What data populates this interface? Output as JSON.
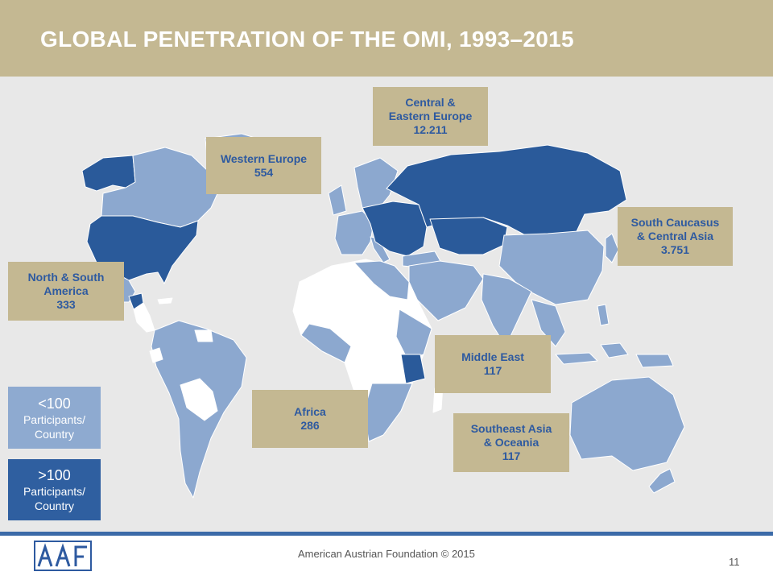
{
  "title": "GLOBAL PENETRATION OF THE OMI, 1993–2015",
  "regions": {
    "central_eastern_europe": {
      "name_line1": "Central &",
      "name_line2": "Eastern Europe",
      "value": "12.211"
    },
    "western_europe": {
      "name": "Western Europe",
      "value": "554"
    },
    "south_caucasus": {
      "name_line1": "South Caucasus",
      "name_line2": "& Central Asia",
      "value": "3.751"
    },
    "americas": {
      "name_line1": "North & South",
      "name_line2": "America",
      "value": "333"
    },
    "middle_east": {
      "name": "Middle East",
      "value": "117"
    },
    "africa": {
      "name": "Africa",
      "value": "286"
    },
    "southeast_asia": {
      "name_line1": "Southeast Asia",
      "name_line2": "& Oceania",
      "value": "117"
    }
  },
  "legend": {
    "low": {
      "threshold": "<100",
      "line1": "Participants/",
      "line2": "Country",
      "color": "#8eaad0"
    },
    "high": {
      "threshold": ">100",
      "line1": "Participants/",
      "line2": "Country",
      "color": "#2f5fa0"
    }
  },
  "colors": {
    "header": "#c4b892",
    "ocean": "#e8e8e8",
    "dark_blue": "#2a5a9a",
    "light_blue": "#8ca8cf",
    "no_data": "#ffffff",
    "rule": "#3b6aa8"
  },
  "footer": {
    "text": "American Austrian Foundation © 2015",
    "page": "11"
  },
  "logo": {
    "text": "AAF"
  }
}
